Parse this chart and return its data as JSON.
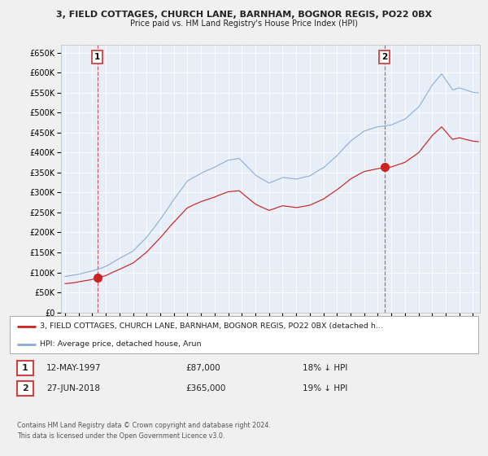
{
  "title1": "3, FIELD COTTAGES, CHURCH LANE, BARNHAM, BOGNOR REGIS, PO22 0BX",
  "title2": "Price paid vs. HM Land Registry's House Price Index (HPI)",
  "background_color": "#f0f0f0",
  "plot_bg_color": "#e8eef8",
  "sale1_date_num": 1997.37,
  "sale1_price": 87000,
  "sale2_date_num": 2018.49,
  "sale2_price": 365000,
  "ylim_min": 0,
  "ylim_max": 670000,
  "xlim_min": 1994.7,
  "xlim_max": 2025.5,
  "legend_line1": "3, FIELD COTTAGES, CHURCH LANE, BARNHAM, BOGNOR REGIS, PO22 0BX (detached h…",
  "legend_line2": "HPI: Average price, detached house, Arun",
  "footer1": "Contains HM Land Registry data © Crown copyright and database right 2024.",
  "footer2": "This data is licensed under the Open Government Licence v3.0.",
  "red_line_color": "#cc2222",
  "blue_line_color": "#88aad4",
  "dashed_color": "#cc4444",
  "yticks": [
    0,
    50000,
    100000,
    150000,
    200000,
    250000,
    300000,
    350000,
    400000,
    450000,
    500000,
    550000,
    600000,
    650000
  ]
}
